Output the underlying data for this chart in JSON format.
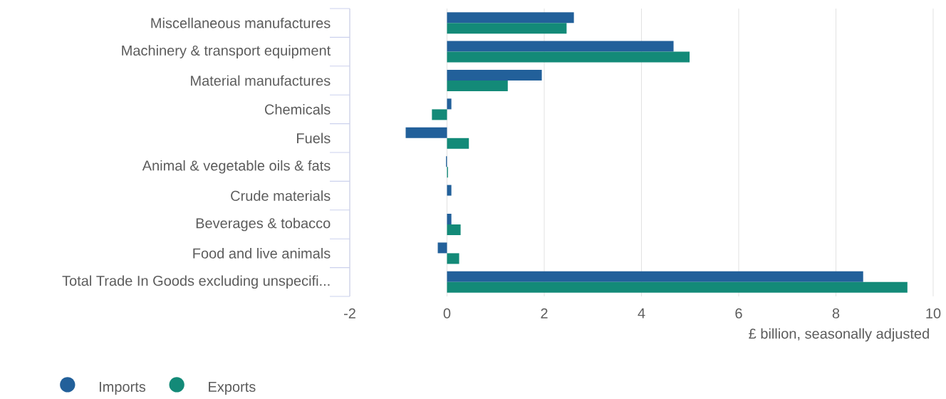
{
  "chart_data": {
    "type": "bar",
    "orientation": "horizontal",
    "xlabel": "£ billion, seasonally adjusted",
    "categories": [
      "Miscellaneous manufactures",
      "Machinery & transport equipment",
      "Material manufactures",
      "Chemicals",
      "Fuels",
      "Animal & vegetable oils & fats",
      "Crude materials",
      "Beverages & tobacco",
      "Food and live animals",
      "Total Trade In Goods excluding unspecifi..."
    ],
    "series": [
      {
        "name": "Imports",
        "color": "#22609a",
        "values": [
          2.61,
          4.66,
          1.95,
          0.09,
          -0.85,
          -0.02,
          0.09,
          0.09,
          -0.19,
          8.56
        ]
      },
      {
        "name": "Exports",
        "color": "#138a78",
        "values": [
          2.46,
          4.99,
          1.25,
          -0.31,
          0.45,
          0.02,
          0.0,
          0.28,
          0.25,
          9.47
        ]
      }
    ],
    "xlim": [
      -2,
      10
    ],
    "xticks": [
      -2,
      0,
      2,
      4,
      6,
      8,
      10
    ],
    "grid": "x",
    "legend": "bottom left"
  }
}
